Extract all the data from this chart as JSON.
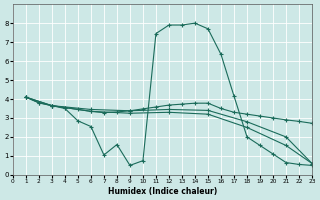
{
  "xlabel": "Humidex (Indice chaleur)",
  "bg_color": "#cde8e6",
  "line_color": "#1a6b5a",
  "grid_color": "#ffffff",
  "xlim": [
    0,
    23
  ],
  "ylim": [
    0,
    9
  ],
  "xticks": [
    0,
    1,
    2,
    3,
    4,
    5,
    6,
    7,
    8,
    9,
    10,
    11,
    12,
    13,
    14,
    15,
    16,
    17,
    18,
    19,
    20,
    21,
    22,
    23
  ],
  "yticks": [
    0,
    1,
    2,
    3,
    4,
    5,
    6,
    7,
    8
  ],
  "series1_x": [
    1,
    2,
    3,
    4,
    5,
    6,
    7,
    8,
    9,
    10,
    11,
    12,
    13,
    14,
    15,
    16,
    17,
    18,
    19,
    20,
    21,
    22,
    23
  ],
  "series1_y": [
    4.1,
    3.8,
    3.65,
    3.55,
    3.45,
    3.35,
    3.28,
    3.32,
    3.38,
    3.48,
    3.58,
    3.68,
    3.73,
    3.78,
    3.78,
    3.5,
    3.3,
    3.2,
    3.1,
    3.0,
    2.9,
    2.82,
    2.72
  ],
  "series2_x": [
    1,
    2,
    3,
    4,
    5,
    6,
    7,
    8,
    9,
    10,
    11,
    12,
    13,
    14,
    15,
    16,
    17,
    18,
    19,
    20,
    21,
    22,
    23
  ],
  "series2_y": [
    4.1,
    3.8,
    3.65,
    3.5,
    2.85,
    2.55,
    1.05,
    1.6,
    0.5,
    0.75,
    7.45,
    7.9,
    7.9,
    8.0,
    7.7,
    6.35,
    4.15,
    2.0,
    1.55,
    1.1,
    0.65,
    0.55,
    0.5
  ],
  "series3_x": [
    1,
    3,
    6,
    9,
    12,
    15,
    18,
    21,
    23
  ],
  "series3_y": [
    4.1,
    3.65,
    3.45,
    3.38,
    3.45,
    3.4,
    2.8,
    2.0,
    0.6
  ],
  "series4_x": [
    1,
    3,
    6,
    9,
    12,
    15,
    18,
    21,
    23
  ],
  "series4_y": [
    4.1,
    3.65,
    3.35,
    3.25,
    3.3,
    3.2,
    2.5,
    1.55,
    0.6
  ]
}
